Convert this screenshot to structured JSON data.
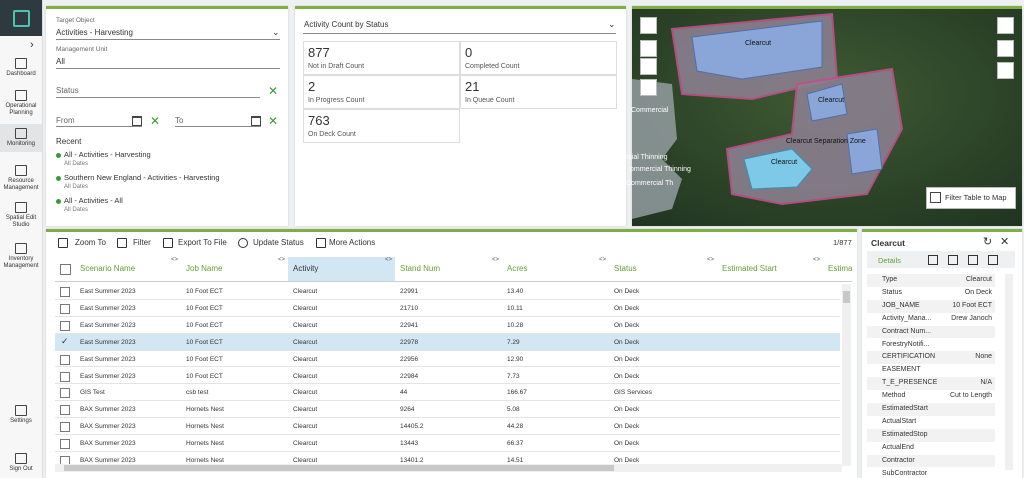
{
  "sidebar": {
    "items": [
      {
        "label": "Dashboard"
      },
      {
        "label": "Operational Planning"
      },
      {
        "label": "Monitoring"
      },
      {
        "label": "Resource Management"
      },
      {
        "label": "Spatial Edit Studio"
      },
      {
        "label": "Inventory Management"
      },
      {
        "label": "Settings"
      },
      {
        "label": "Sign Out"
      }
    ]
  },
  "filters": {
    "target_object_label": "Target Object",
    "target_object": "Activities - Harvesting",
    "management_unit_label": "Management Unit",
    "management_unit": "All",
    "status": "Status",
    "from": "From",
    "to": "To",
    "recent_label": "Recent",
    "recent": [
      {
        "title": "All - Activities - Harvesting",
        "sub": "All Dates"
      },
      {
        "title": "Southern New England - Activities - Harvesting",
        "sub": "All Dates"
      },
      {
        "title": "All - Activities - All",
        "sub": "All Dates"
      }
    ]
  },
  "counts": {
    "title": "Activity Count by Status",
    "items": [
      {
        "value": 877,
        "label": "Not in Draft Count"
      },
      {
        "value": 0,
        "label": "Completed Count"
      },
      {
        "value": 2,
        "label": "In Progress Count"
      },
      {
        "value": 21,
        "label": "In Queue Count"
      },
      {
        "value": 763,
        "label": "On Deck Count"
      }
    ]
  },
  "map": {
    "labels": [
      "Clearcut",
      "Clearcut",
      "Clearcut Separation Zone",
      "Clearcut",
      "Commercial",
      "rcial Thinning",
      "ommercial Thinning",
      "Commercial Th"
    ],
    "filter_button": "Filter Table to Map"
  },
  "toolbar": {
    "actions": [
      "Zoom To",
      "Filter",
      "Export To File",
      "Update Status",
      "More Actions"
    ],
    "count": "1/877"
  },
  "table": {
    "columns": [
      "Scenario Name",
      "Job Name",
      "Activity",
      "Stand Num",
      "Acres",
      "Status",
      "Estimated Start",
      "Estima"
    ],
    "rows": [
      [
        "East Summer 2023",
        "10 Foot ECT",
        "Clearcut",
        "22991",
        "13.40",
        "On Deck"
      ],
      [
        "East Summer 2023",
        "10 Foot ECT",
        "Clearcut",
        "21710",
        "10.11",
        "On Deck"
      ],
      [
        "East Summer 2023",
        "10 Foot ECT",
        "Clearcut",
        "22941",
        "10.28",
        "On Deck"
      ],
      [
        "East Summer 2023",
        "10 Foot ECT",
        "Clearcut",
        "22978",
        "7.29",
        "On Deck"
      ],
      [
        "East Summer 2023",
        "10 Foot ECT",
        "Clearcut",
        "22956",
        "12.90",
        "On Deck"
      ],
      [
        "East Summer 2023",
        "10 Foot ECT",
        "Clearcut",
        "22984",
        "7.73",
        "On Deck"
      ],
      [
        "GIS Test",
        "csb test",
        "Clearcut",
        "44",
        "166.67",
        "GIS Services"
      ],
      [
        "BAX Summer 2023",
        "Hornets Nest",
        "Clearcut",
        "9264",
        "5.08",
        "On Deck"
      ],
      [
        "BAX Summer 2023",
        "Hornets Nest",
        "Clearcut",
        "14405.2",
        "44.28",
        "On Deck"
      ],
      [
        "BAX Summer 2023",
        "Hornets Nest",
        "Clearcut",
        "13443",
        "66.37",
        "On Deck"
      ],
      [
        "BAX Summer 2023",
        "Hornets Nest",
        "Clearcut",
        "13401.2",
        "14.51",
        "On Deck"
      ]
    ]
  },
  "details": {
    "title": "Clearcut",
    "tab": "Details",
    "fields": [
      {
        "key": "Type",
        "value": "Clearcut"
      },
      {
        "key": "Status",
        "value": "On Deck"
      },
      {
        "key": "JOB_NAME",
        "value": "10 Foot ECT"
      },
      {
        "key": "Activity_Mana...",
        "value": "Drew Janoch"
      },
      {
        "key": "Contract Num..."
      },
      {
        "key": "ForestryNotifi..."
      },
      {
        "key": "CERTIFICATION",
        "value": "None"
      },
      {
        "key": "EASEMENT"
      },
      {
        "key": "T_E_PRESENCE",
        "value": "N/A"
      },
      {
        "key": "Method",
        "value": "Cut to Length"
      },
      {
        "key": "EstimatedStart"
      },
      {
        "key": "ActualStart"
      },
      {
        "key": "EstimatedStop"
      },
      {
        "key": "ActualEnd"
      },
      {
        "key": "Contractor"
      },
      {
        "key": "SubContractor"
      }
    ]
  }
}
